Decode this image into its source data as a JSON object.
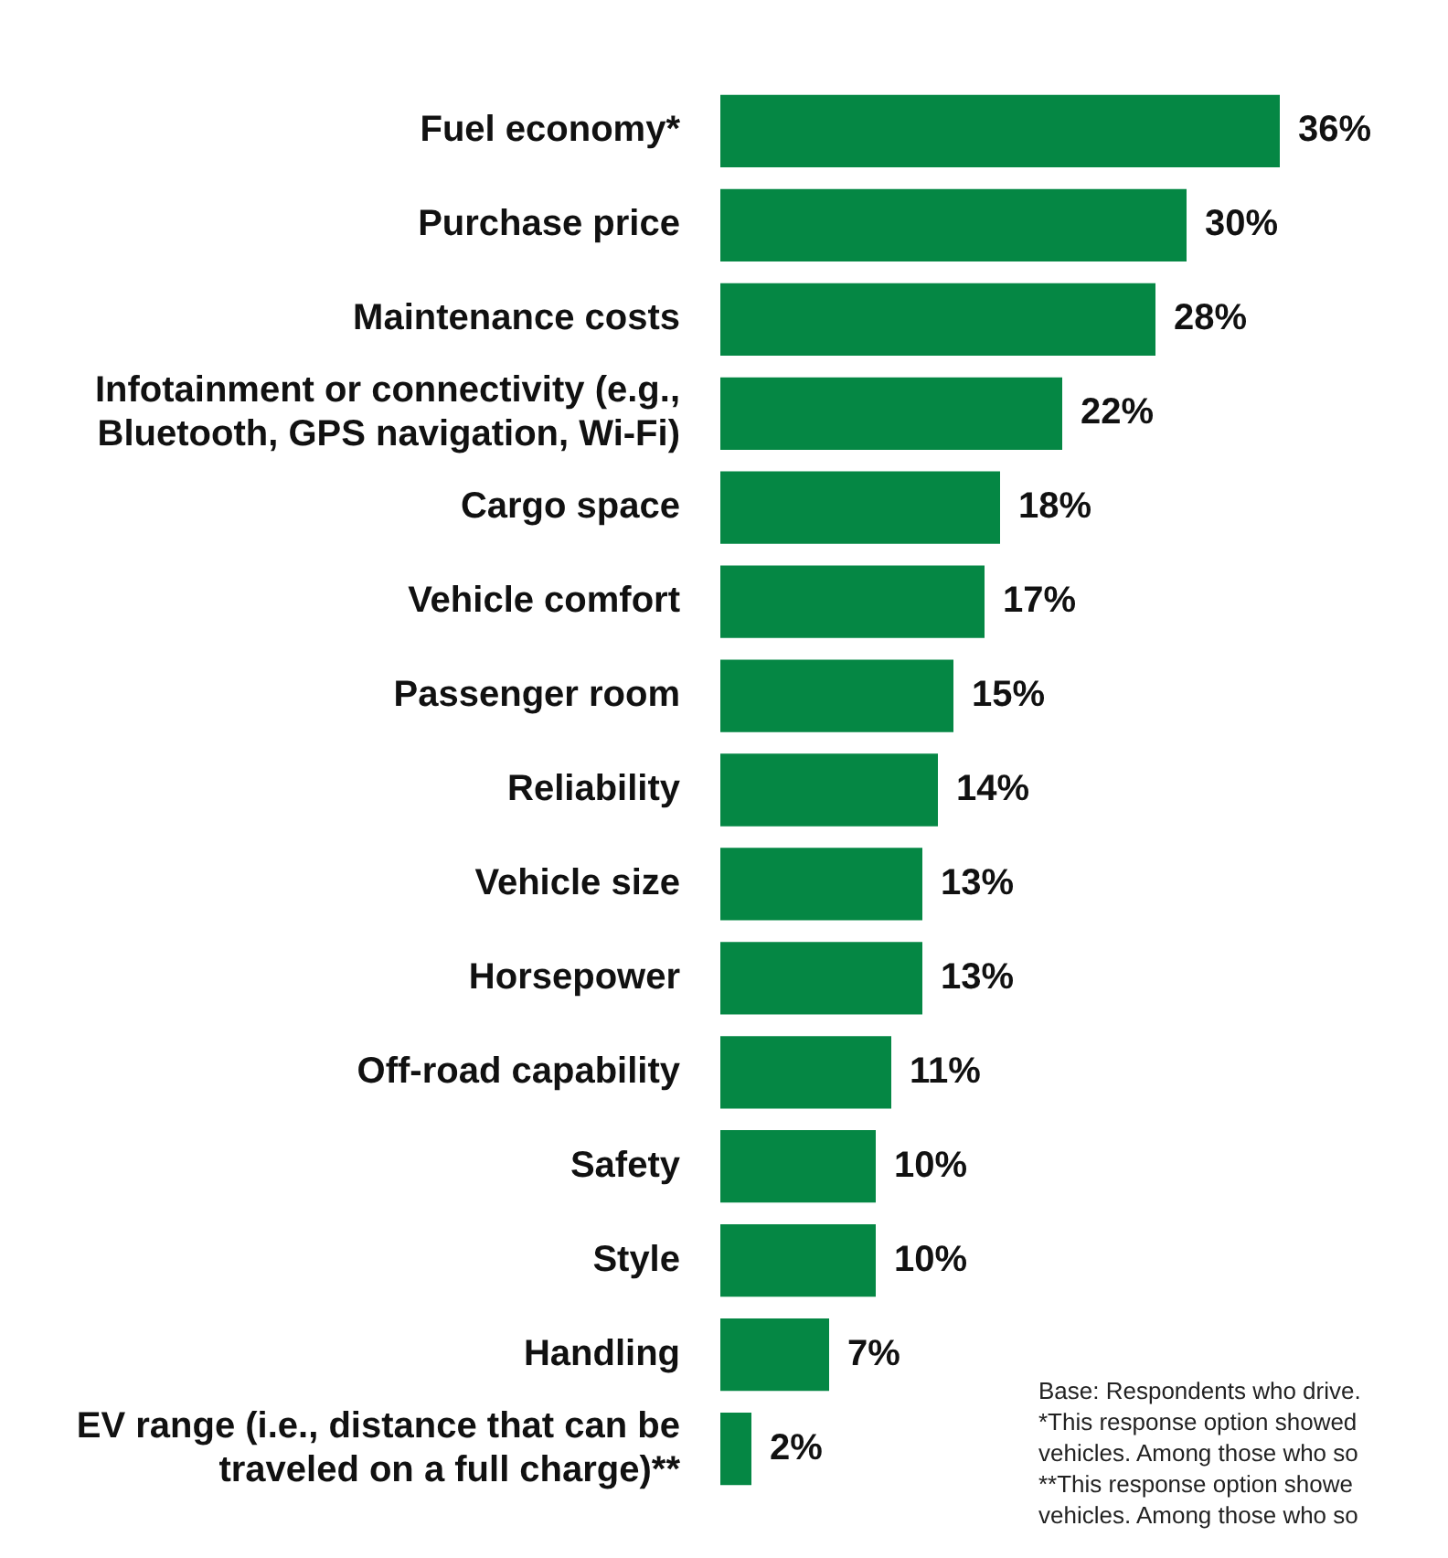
{
  "chart_data": {
    "type": "bar",
    "orientation": "horizontal",
    "categories": [
      "Fuel economy*",
      "Purchase price",
      "Maintenance costs",
      "Infotainment or connectivity (e.g., Bluetooth, GPS navigation, Wi-Fi)",
      "Cargo space",
      "Vehicle comfort",
      "Passenger room",
      "Reliability",
      "Vehicle size",
      "Horsepower",
      "Off-road capability",
      "Safety",
      "Style",
      "Handling",
      "EV range (i.e., distance that can be traveled on a full charge)**"
    ],
    "values": [
      36,
      30,
      28,
      22,
      18,
      17,
      15,
      14,
      13,
      13,
      11,
      10,
      10,
      7,
      2
    ],
    "color": "#058744",
    "data_labels": true,
    "value_labels": [
      "36%",
      "30%",
      "28%",
      "22%",
      "18%",
      "17%",
      "15%",
      "14%",
      "13%",
      "13%",
      "11%",
      "10%",
      "10%",
      "7%",
      "2%"
    ],
    "legend": false,
    "annotations": [
      "Base: Respondents who drive.",
      "*This response option showed",
      "vehicles. Among those who so",
      "**This response option showe",
      "vehicles. Among those who so"
    ]
  }
}
